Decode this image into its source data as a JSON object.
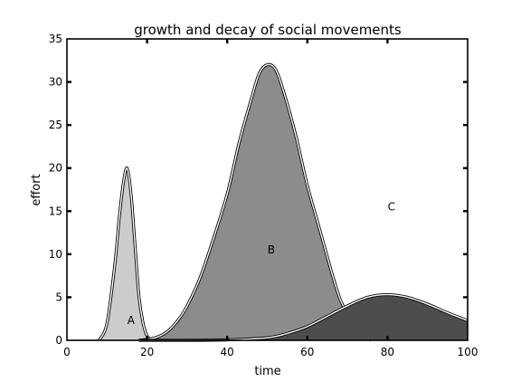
{
  "chart_data": {
    "type": "area",
    "title": "growth and decay of social movements",
    "xlabel": "time",
    "ylabel": "effort",
    "xlim": [
      0,
      100
    ],
    "ylim": [
      0,
      35
    ],
    "xticks": [
      0,
      20,
      40,
      60,
      80,
      100
    ],
    "yticks": [
      0,
      5,
      10,
      15,
      20,
      25,
      30,
      35
    ],
    "grid": false,
    "series": [
      {
        "name": "A",
        "color": "#cccccc",
        "label_at": [
          16,
          2.3
        ],
        "x": [
          8,
          10,
          12,
          13,
          14,
          15,
          16,
          17,
          18,
          19,
          20,
          21,
          22
        ],
        "y": [
          0,
          2,
          9,
          14,
          18,
          20,
          17,
          11,
          5,
          2,
          0.5,
          0.1,
          0
        ]
      },
      {
        "name": "B",
        "color": "#8c8c8c",
        "label_at": [
          51,
          10.5
        ],
        "x": [
          18,
          22,
          25,
          28,
          30,
          33,
          36,
          40,
          43,
          46,
          48,
          50,
          52,
          54,
          57,
          60,
          63,
          66,
          68,
          70,
          72,
          74,
          76
        ],
        "y": [
          0,
          0.3,
          1,
          2.5,
          4,
          7,
          11,
          17,
          23,
          28,
          31,
          32,
          31.5,
          29,
          24,
          18,
          13,
          8,
          5,
          3,
          1.5,
          0.7,
          0
        ]
      },
      {
        "name": "C",
        "color": "#4d4d4d",
        "label_at": [
          81,
          15.5
        ],
        "x": [
          18,
          30,
          40,
          50,
          55,
          60,
          65,
          70,
          75,
          80,
          85,
          90,
          95,
          100
        ],
        "y": [
          0,
          0,
          0.05,
          0.3,
          0.8,
          1.6,
          2.8,
          4,
          5,
          5.3,
          5,
          4.2,
          3.2,
          2.3
        ]
      }
    ]
  }
}
